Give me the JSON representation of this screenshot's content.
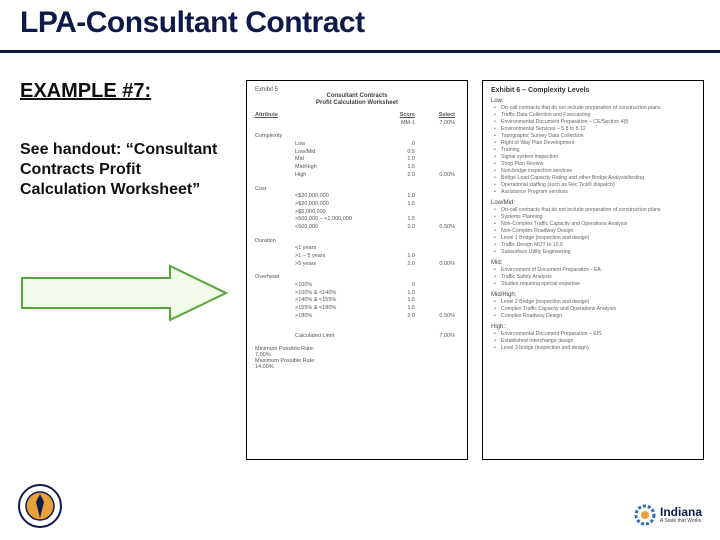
{
  "title": "LPA-Consultant Contract",
  "example_label": "EXAMPLE #7:",
  "handout_text": "See handout: “Consultant Contracts Profit Calculation Worksheet”",
  "arrow": {
    "fill": "#f2faea",
    "stroke": "#57a639",
    "stroke_width": 2
  },
  "colors": {
    "title": "#0d1a4a",
    "underline": "#0d1a4a",
    "doc_border": "#000000"
  },
  "doc_left": {
    "exhibit": "Exhibit 5",
    "title": "Consultant Contracts",
    "subtitle": "Profit Calculation Worksheet",
    "header": {
      "c1": "Attribute",
      "c3": "Score",
      "c4": "Select"
    },
    "select_vals": [
      "MM-1",
      "7.00%"
    ],
    "sections": [
      {
        "label": "Complexity",
        "rows": [
          {
            "name": "Low",
            "score": "0"
          },
          {
            "name": "Low/Mid",
            "score": "0.5"
          },
          {
            "name": "Mid",
            "score": "1.0"
          },
          {
            "name": "Mid/High",
            "score": "1.5"
          },
          {
            "name": "High",
            "score": "2.0",
            "sel": "0.00%"
          }
        ]
      },
      {
        "label": "Cost",
        "rows": [
          {
            "name": "<$20,000,000",
            "score": "1.0"
          },
          {
            "name": ">$20,000,000",
            "score": "1.5"
          },
          {
            "name": ">$5,000,000",
            "score": ""
          },
          {
            "name": ">500,000 – <1,000,000",
            "score": "1.5"
          },
          {
            "name": "<500,000",
            "score": "2.0",
            "sel": "0.50%"
          }
        ]
      },
      {
        "label": "Duration",
        "rows": [
          {
            "name": "<1 years",
            "score": ""
          },
          {
            "name": ">1 – 5 years",
            "score": "1.0"
          },
          {
            "name": ">5 years",
            "score": "2.0",
            "sel": "0.00%"
          }
        ]
      },
      {
        "label": "Overhead",
        "rows": [
          {
            "name": "<100%",
            "score": "0"
          },
          {
            "name": ">100% & <140%",
            "score": "1.0"
          },
          {
            "name": ">140% & <155%",
            "score": "1.5"
          },
          {
            "name": ">155% & <180%",
            "score": "1.5"
          },
          {
            "name": ">180%",
            "score": "2.0",
            "sel": "0.50%"
          }
        ]
      }
    ],
    "calc_label": "Calculated Limit",
    "calc_val": "7.00%",
    "notes": [
      "Minimum Possible Rate:",
      "7.00%",
      "Maximum Possible Rate:",
      "14.00%"
    ]
  },
  "doc_right": {
    "exhibit": "Exhibit 6 – Complexity Levels",
    "levels": [
      {
        "name": "Low:",
        "items": [
          "On-call contracts that do not include preparation of construction plans",
          "Traffic Data Collection and Forecasting",
          "Environmental Document Preparation – CE/Section 4(f)",
          "Environmental Services – 5.8 to 5.12",
          "Topographic Survey Data Collection",
          "Right of Way Plan Development",
          "Training",
          "Signal system inspection",
          "Shop Plan Review",
          "Non-bridge inspection services",
          "Bridge Load Capacity Rating and other Bridge Analysis/testing",
          "Operational staffing (such as Rec Tick® dispatch)",
          "Assistance Program services"
        ]
      },
      {
        "name": "Low/Mid:",
        "items": [
          "On-call contracts that do not include preparation of construction plans",
          "Systems Planning",
          "Non-Complex Traffic Capacity and Operations Analysis",
          "Non-Complex Roadway Design",
          "Level 1 Bridge (inspection and design)",
          "Traffic Design MOT to 10.6",
          "Subsurface Utility Engineering"
        ]
      },
      {
        "name": "Mid:",
        "items": [
          "Environment of Document Preparation - EA",
          "Traffic Safety Analysis",
          "Studies requiring special expertise"
        ]
      },
      {
        "name": "Mid/High:",
        "items": [
          "Level 2 Bridge (inspection and design)",
          "Complex Traffic Capacity and Operations Analysis",
          "Complex Roadway Design"
        ]
      },
      {
        "name": "High:",
        "items": [
          "Environmental Document Preparation – EIS",
          "Established Interchange design",
          "Level 3 bridge (inspection and design)"
        ]
      }
    ]
  },
  "footer": {
    "indiana_label": "Indiana",
    "indiana_sub": "A State that Works"
  }
}
